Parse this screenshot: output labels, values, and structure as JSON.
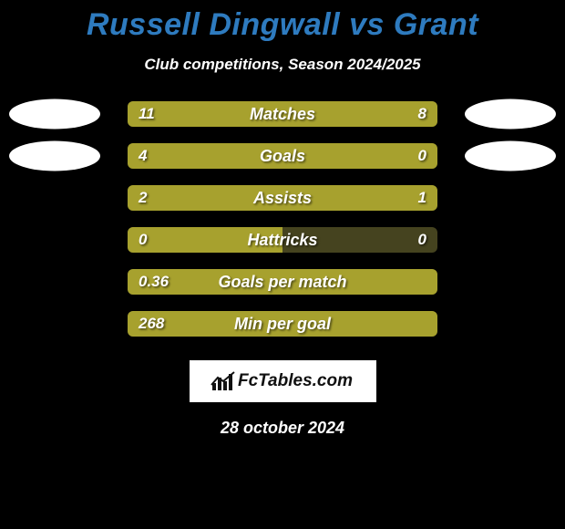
{
  "title": {
    "text": "Russell Dingwall vs Grant",
    "color": "#2e7bbf",
    "fontsize": 34
  },
  "subtitle": "Club competitions, Season 2024/2025",
  "date": "28 october 2024",
  "background_color": "#000000",
  "colors": {
    "bar_primary": "#a7a12e",
    "bar_secondary": "#45431f",
    "avatar_fill": "#ffffff",
    "text": "#ffffff"
  },
  "avatar_rows": [
    0,
    1
  ],
  "stats": [
    {
      "label": "Matches",
      "left_val": "11",
      "right_val": "8",
      "left_pct": 100,
      "right_pct": 0
    },
    {
      "label": "Goals",
      "left_val": "4",
      "right_val": "0",
      "left_pct": 77,
      "right_pct": 23
    },
    {
      "label": "Assists",
      "left_val": "2",
      "right_val": "1",
      "left_pct": 73,
      "right_pct": 27
    },
    {
      "label": "Hattricks",
      "left_val": "0",
      "right_val": "0",
      "left_pct": 50,
      "right_pct": 0
    },
    {
      "label": "Goals per match",
      "left_val": "0.36",
      "right_val": "",
      "left_pct": 100,
      "right_pct": 0
    },
    {
      "label": "Min per goal",
      "left_val": "268",
      "right_val": "",
      "left_pct": 100,
      "right_pct": 0
    }
  ],
  "logo": {
    "text": "FcTables.com",
    "bg": "#ffffff",
    "fg": "#111111"
  }
}
